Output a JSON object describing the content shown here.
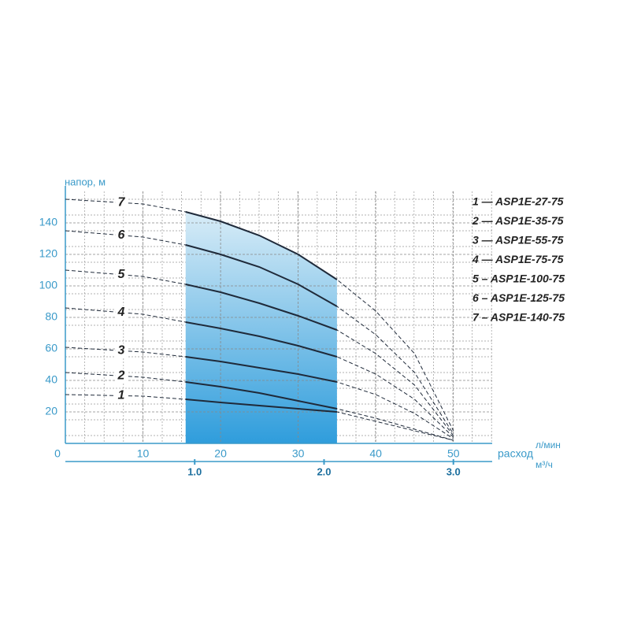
{
  "chart_data": {
    "type": "line",
    "y_label": "напор, м",
    "x_label": "расход",
    "x_unit": "л/мин",
    "x2_unit": "м³/ч",
    "x": [
      0,
      10,
      15.5,
      20,
      25,
      30,
      35,
      40,
      45,
      50
    ],
    "series": [
      {
        "name": "1",
        "color": "#1f2a3a",
        "values": [
          31,
          30,
          28,
          26,
          24,
          22,
          20,
          14,
          8,
          2
        ]
      },
      {
        "name": "2",
        "color": "#1f2a3a",
        "values": [
          45,
          42,
          39,
          36,
          32,
          27,
          22,
          16,
          9,
          2
        ]
      },
      {
        "name": "3",
        "color": "#1f2a3a",
        "values": [
          61,
          58,
          55,
          52,
          48,
          44,
          39,
          31,
          19,
          3
        ]
      },
      {
        "name": "4",
        "color": "#1f2a3a",
        "values": [
          86,
          82,
          77,
          73,
          68,
          62,
          55,
          44,
          28,
          4
        ]
      },
      {
        "name": "5",
        "color": "#1f2a3a",
        "values": [
          110,
          106,
          101,
          96,
          89,
          81,
          72,
          57,
          37,
          5
        ]
      },
      {
        "name": "6",
        "color": "#1f2a3a",
        "values": [
          135,
          131,
          126,
          120,
          112,
          101,
          87,
          69,
          45,
          6
        ]
      },
      {
        "name": "7",
        "color": "#1f2a3a",
        "values": [
          155,
          152,
          147,
          141,
          132,
          120,
          104,
          84,
          57,
          8
        ]
      }
    ],
    "legend": [
      "1 — ASP1E-27-75",
      "2 — ASP1E-35-75",
      "3 — ASP1E-55-75",
      "4 — ASP1E-75-75",
      "5 – ASP1E-100-75",
      "6 – ASP1E-125-75",
      "7 – ASP1E-140-75"
    ],
    "highlight_x": [
      15.5,
      35
    ],
    "xlim": [
      0,
      55
    ],
    "xticks": [
      0,
      10,
      20,
      30,
      40,
      50
    ],
    "x2lim": [
      0,
      3.3
    ],
    "x2ticks": [
      {
        "value": 1,
        "label": "1.0"
      },
      {
        "value": 2,
        "label": "2.0"
      },
      {
        "value": 3,
        "label": "3.0"
      }
    ],
    "ylim": [
      0,
      160
    ],
    "yticks": [
      20,
      40,
      60,
      80,
      100,
      120,
      140
    ],
    "grid": true
  }
}
